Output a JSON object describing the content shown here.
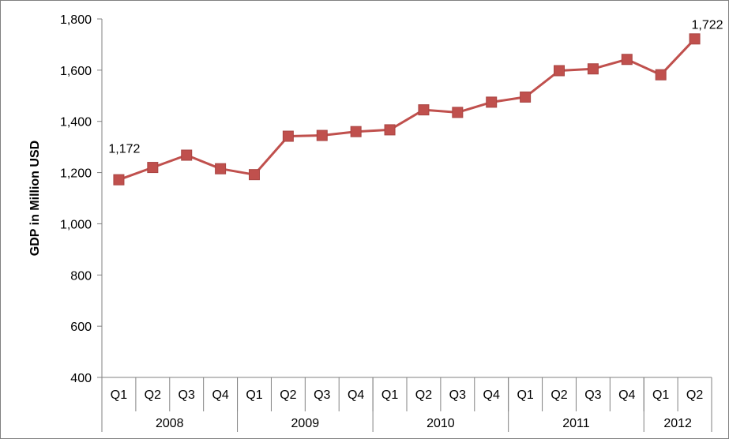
{
  "chart_data": {
    "type": "line",
    "title": "",
    "xlabel": "",
    "ylabel": "GDP in Million USD",
    "ylim": [
      400,
      1800
    ],
    "yticks": [
      "1,800",
      "1,600",
      "1,400",
      "1,200",
      "1,000",
      "800",
      "600",
      "400"
    ],
    "ytick_values": [
      1800,
      1600,
      1400,
      1200,
      1000,
      800,
      600,
      400
    ],
    "grid": false,
    "legend": "none",
    "categories": [
      "Q1",
      "Q2",
      "Q3",
      "Q4",
      "Q1",
      "Q2",
      "Q3",
      "Q4",
      "Q1",
      "Q2",
      "Q3",
      "Q4",
      "Q1",
      "Q2",
      "Q3",
      "Q4",
      "Q1",
      "Q2"
    ],
    "groups": [
      {
        "label": "2008",
        "count": 4
      },
      {
        "label": "2009",
        "count": 4
      },
      {
        "label": "2010",
        "count": 4
      },
      {
        "label": "2011",
        "count": 4
      },
      {
        "label": "2012",
        "count": 2
      }
    ],
    "series": [
      {
        "values": [
          1172,
          1220,
          1268,
          1215,
          1192,
          1342,
          1345,
          1360,
          1367,
          1445,
          1435,
          1475,
          1495,
          1598,
          1605,
          1642,
          1582,
          1722
        ]
      }
    ],
    "annotations": [
      {
        "index": 0,
        "text": "1,172"
      },
      {
        "index": 17,
        "text": "1,722"
      }
    ],
    "colors": {
      "series": "#C0504D",
      "axis": "#808080"
    }
  }
}
